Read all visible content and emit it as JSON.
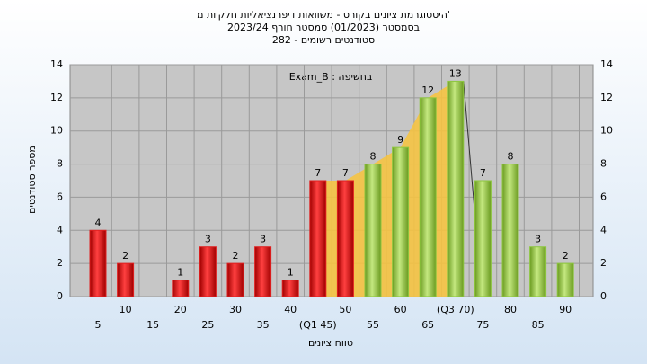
{
  "chart_data": {
    "type": "bar",
    "title": "'היסטוגרמת ציונים בקורס - משוואות דיפרנציאליות חלקיות מ",
    "subtitle": "בסמסטר  (01/2023)  סמסטר חורף 2023/24",
    "subtitle2": "סטודנטים רשומים - 282",
    "annotation": "בחשיפה : Exam_B",
    "x_label": "טווח ציונים",
    "y_label": "מספר סטודנטים",
    "categories": [
      "5",
      "10",
      "15",
      "20",
      "25",
      "30",
      "35",
      "40",
      "(Q1 45)",
      "50",
      "55",
      "60",
      "65",
      "(Q3 70)",
      "75",
      "80",
      "85",
      "90"
    ],
    "values": [
      4,
      2,
      0,
      1,
      3,
      2,
      3,
      1,
      7,
      7,
      8,
      9,
      12,
      13,
      7,
      8,
      3,
      2
    ],
    "colors": [
      "#e02020",
      "#e02020",
      "#e02020",
      "#e02020",
      "#e02020",
      "#e02020",
      "#e02020",
      "#e02020",
      "#e02020",
      "#e02020",
      "#8dc63f",
      "#8dc63f",
      "#8dc63f",
      "#8dc63f",
      "#8dc63f",
      "#8dc63f",
      "#8dc63f",
      "#8dc63f"
    ],
    "ylim": [
      0,
      14
    ],
    "yticks": [
      0,
      2,
      4,
      6,
      8,
      10,
      12,
      14
    ],
    "grid": true
  }
}
